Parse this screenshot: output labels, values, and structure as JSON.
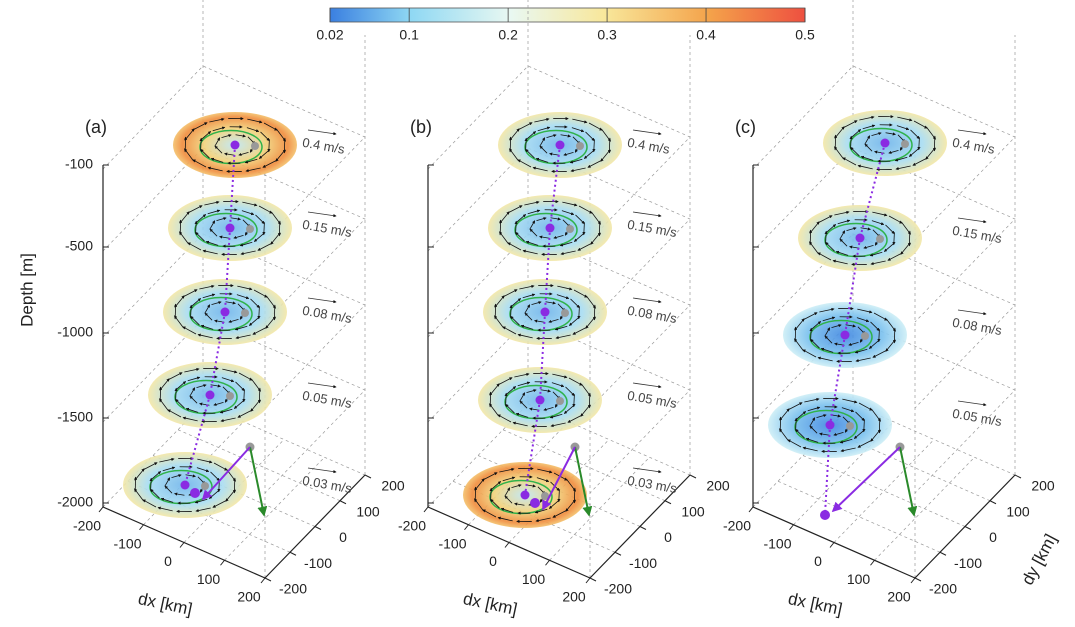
{
  "colorbar": {
    "lim": [
      0.02,
      0.5
    ],
    "ticks": [
      0.02,
      0.1,
      0.2,
      0.3,
      0.4,
      0.5
    ]
  },
  "chart_data": [
    {
      "type": "vector-3d",
      "label": "(a)",
      "zlabel": "Depth [m]",
      "xlabel": "dx [km]",
      "xticks": [
        -200,
        -100,
        0,
        100,
        200
      ],
      "yticks": [
        -200,
        -100,
        0,
        100,
        200
      ],
      "zticks": [
        -100,
        -500,
        -1000,
        -1500,
        -2000
      ],
      "reference_labels": [
        "0.4 m/s",
        "0.15 m/s",
        "0.08 m/s",
        "0.05 m/s",
        "0.03 m/s"
      ]
    },
    {
      "type": "vector-3d",
      "label": "(b)",
      "xlabel": "dx [km]",
      "xticks": [
        -200,
        -100,
        0,
        100,
        200
      ],
      "yticks": [
        -200,
        -100,
        0,
        100,
        200
      ],
      "reference_labels": [
        "0.4 m/s",
        "0.15 m/s",
        "0.08 m/s",
        "0.05 m/s",
        "0.03 m/s"
      ]
    },
    {
      "type": "vector-3d",
      "label": "(c)",
      "xlabel": "dx [km]",
      "ylabel": "dy [km]",
      "xticks": [
        -200,
        -100,
        0,
        100,
        200
      ],
      "yticks": [
        -200,
        -100,
        0,
        100,
        200
      ],
      "reference_labels": [
        "0.4 m/s",
        "0.15 m/s",
        "0.08 m/s",
        "0.05 m/s"
      ]
    }
  ]
}
